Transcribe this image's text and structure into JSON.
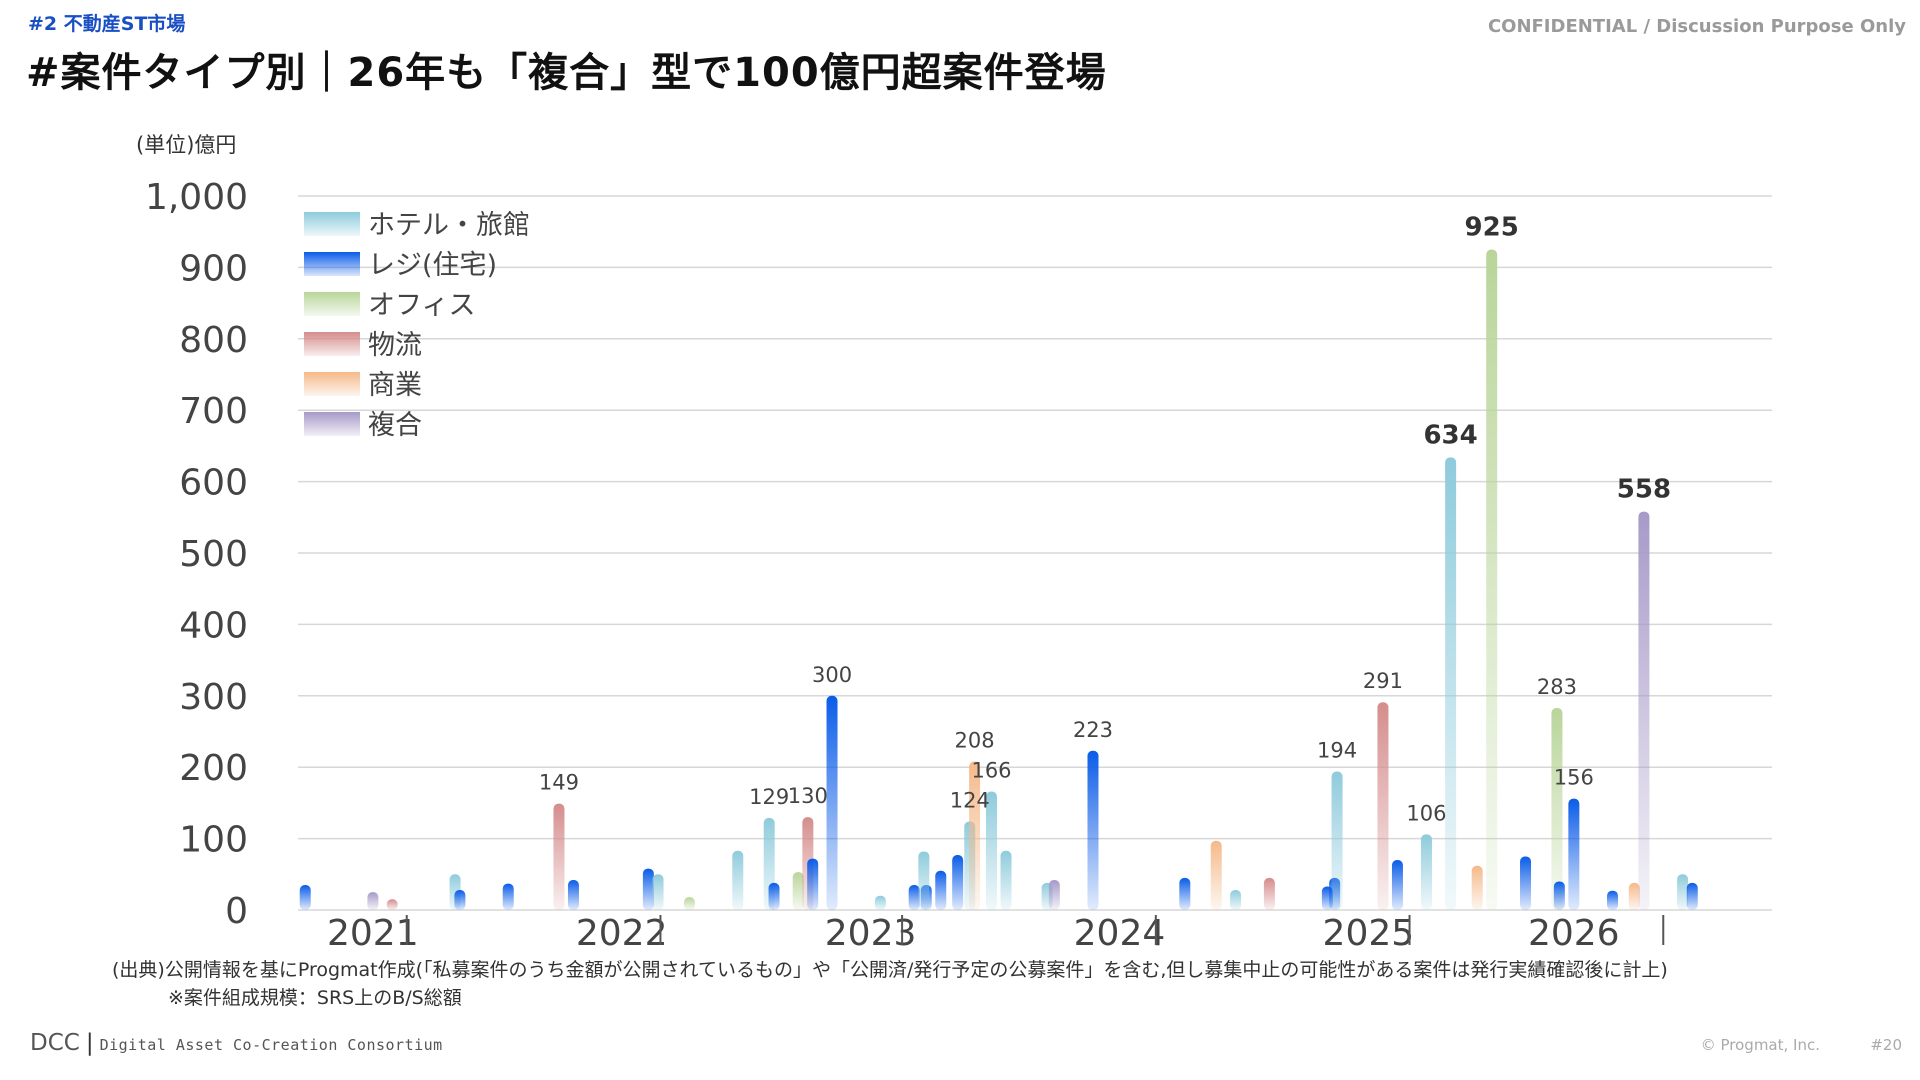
{
  "header": {
    "section_tag": "#2 不動産ST市場",
    "title": "#案件タイプ別｜26年も「複合」型で100億円超案件登場",
    "confidential": "CONFIDENTIAL / Discussion Purpose Only"
  },
  "footer": {
    "source_note": "(出典)公開情報を基にProgmat作成(「私募案件のうち金額が公開されているもの」や「公開済/発行予定の公募案件」を含む,但し募集中止の可能性がある案件は発行実績確認後に計上)",
    "size_note": "※案件組成規模：SRS上のB/S総額",
    "brand_short": "DCC",
    "brand_full": "Digital Asset Co-Creation Consortium",
    "copyright": "© Progmat, Inc.",
    "page": "#20"
  },
  "chart_data": {
    "type": "bar",
    "title": "",
    "ylabel": "(単位)億円",
    "xlabel": "",
    "ylim": [
      0,
      1000
    ],
    "yticks": [
      "0",
      "100",
      "200",
      "300",
      "400",
      "500",
      "600",
      "700",
      "800",
      "900",
      "1,000"
    ],
    "x_range": [
      0,
      61
    ],
    "year_labels": [
      {
        "label": "2021",
        "x": 1.2
      },
      {
        "label": "2022",
        "x": 11.5
      },
      {
        "label": "2023",
        "x": 21.8
      },
      {
        "label": "2024",
        "x": 32.1
      },
      {
        "label": "2025",
        "x": 42.4
      },
      {
        "label": "2026",
        "x": 50.9
      }
    ],
    "year_separators": [
      4.5,
      15,
      25,
      35.5,
      46,
      56.5
    ],
    "series": [
      {
        "name": "ホテル・旅館",
        "color": "#8ecbdc"
      },
      {
        "name": "レジ(住宅)",
        "color": "#0a5ce8"
      },
      {
        "name": "オフィス",
        "color": "#b9d59a"
      },
      {
        "name": "物流",
        "color": "#d58c8c"
      },
      {
        "name": "商業",
        "color": "#f5b98a"
      },
      {
        "name": "複合",
        "color": "#a79ac8"
      }
    ],
    "points": [
      {
        "x": 0.3,
        "value": 35,
        "series": "レジ(住宅)"
      },
      {
        "x": 3.1,
        "value": 25,
        "series": "複合"
      },
      {
        "x": 3.9,
        "value": 15,
        "series": "物流"
      },
      {
        "x": 6.5,
        "value": 50,
        "series": "ホテル・旅館"
      },
      {
        "x": 6.7,
        "value": 28,
        "series": "レジ(住宅)"
      },
      {
        "x": 8.7,
        "value": 37,
        "series": "レジ(住宅)"
      },
      {
        "x": 10.8,
        "value": 149,
        "series": "物流",
        "label": "149"
      },
      {
        "x": 11.4,
        "value": 42,
        "series": "レジ(住宅)"
      },
      {
        "x": 14.5,
        "value": 58,
        "series": "レジ(住宅)"
      },
      {
        "x": 14.9,
        "value": 50,
        "series": "ホテル・旅館"
      },
      {
        "x": 16.2,
        "value": 18,
        "series": "オフィス"
      },
      {
        "x": 18.2,
        "value": 83,
        "series": "ホテル・旅館"
      },
      {
        "x": 19.5,
        "value": 129,
        "series": "ホテル・旅館",
        "label": "129"
      },
      {
        "x": 19.7,
        "value": 38,
        "series": "レジ(住宅)"
      },
      {
        "x": 20.7,
        "value": 53,
        "series": "オフィス"
      },
      {
        "x": 21.1,
        "value": 130,
        "series": "物流",
        "label": "130"
      },
      {
        "x": 21.3,
        "value": 72,
        "series": "レジ(住宅)"
      },
      {
        "x": 22.1,
        "value": 300,
        "series": "レジ(住宅)",
        "label": "300"
      },
      {
        "x": 24.1,
        "value": 20,
        "series": "ホテル・旅館"
      },
      {
        "x": 25.5,
        "value": 35,
        "series": "レジ(住宅)"
      },
      {
        "x": 26.0,
        "value": 35,
        "series": "レジ(住宅)"
      },
      {
        "x": 25.9,
        "value": 82,
        "series": "ホテル・旅館"
      },
      {
        "x": 26.6,
        "value": 55,
        "series": "レジ(住宅)"
      },
      {
        "x": 27.3,
        "value": 77,
        "series": "レジ(住宅)"
      },
      {
        "x": 27.8,
        "value": 124,
        "series": "ホテル・旅館",
        "label": "124"
      },
      {
        "x": 28.0,
        "value": 208,
        "series": "商業",
        "label": "208"
      },
      {
        "x": 28.7,
        "value": 166,
        "series": "ホテル・旅館",
        "label": "166"
      },
      {
        "x": 29.3,
        "value": 83,
        "series": "ホテル・旅館"
      },
      {
        "x": 31.0,
        "value": 38,
        "series": "ホテル・旅館"
      },
      {
        "x": 31.3,
        "value": 42,
        "series": "複合"
      },
      {
        "x": 32.9,
        "value": 223,
        "series": "レジ(住宅)",
        "label": "223"
      },
      {
        "x": 36.7,
        "value": 45,
        "series": "レジ(住宅)"
      },
      {
        "x": 38.0,
        "value": 97,
        "series": "商業"
      },
      {
        "x": 38.8,
        "value": 28,
        "series": "ホテル・旅館"
      },
      {
        "x": 40.2,
        "value": 45,
        "series": "物流"
      },
      {
        "x": 42.6,
        "value": 33,
        "series": "レジ(住宅)"
      },
      {
        "x": 42.9,
        "value": 45,
        "series": "レジ(住宅)"
      },
      {
        "x": 43.0,
        "value": 194,
        "series": "ホテル・旅館",
        "label": "194"
      },
      {
        "x": 44.9,
        "value": 291,
        "series": "物流",
        "label": "291"
      },
      {
        "x": 45.5,
        "value": 70,
        "series": "レジ(住宅)"
      },
      {
        "x": 46.7,
        "value": 106,
        "series": "ホテル・旅館",
        "label": "106"
      },
      {
        "x": 47.7,
        "value": 634,
        "series": "ホテル・旅館",
        "label": "634",
        "bold": true
      },
      {
        "x": 48.8,
        "value": 62,
        "series": "商業"
      },
      {
        "x": 49.4,
        "value": 925,
        "series": "オフィス",
        "label": "925",
        "bold": true
      },
      {
        "x": 50.8,
        "value": 75,
        "series": "レジ(住宅)"
      },
      {
        "x": 52.1,
        "value": 283,
        "series": "オフィス",
        "label": "283"
      },
      {
        "x": 52.2,
        "value": 40,
        "series": "レジ(住宅)"
      },
      {
        "x": 52.8,
        "value": 156,
        "series": "レジ(住宅)",
        "label": "156"
      },
      {
        "x": 54.4,
        "value": 27,
        "series": "レジ(住宅)"
      },
      {
        "x": 55.3,
        "value": 38,
        "series": "商業"
      },
      {
        "x": 55.7,
        "value": 558,
        "series": "複合",
        "label": "558",
        "bold": true
      },
      {
        "x": 57.3,
        "value": 50,
        "series": "ホテル・旅館"
      },
      {
        "x": 57.7,
        "value": 38,
        "series": "レジ(住宅)"
      }
    ]
  }
}
